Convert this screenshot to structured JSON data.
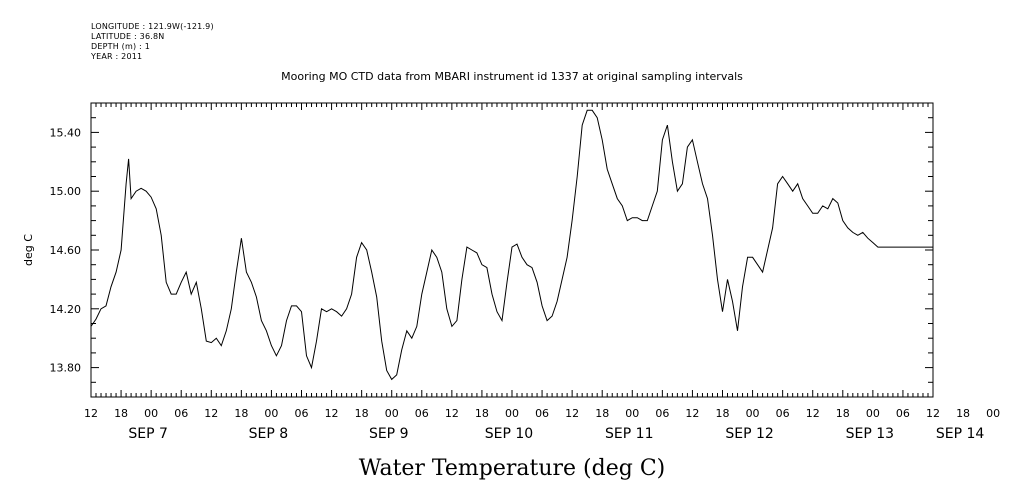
{
  "header_meta": {
    "longitude": "LONGITUDE : 121.9W(-121.9)",
    "latitude": "LATITUDE : 36.8N",
    "depth": "DEPTH (m) : 1",
    "year": "YEAR : 2011"
  },
  "chart_data": {
    "type": "line",
    "title": "Mooring MO CTD data from MBARI instrument id 1337 at original sampling intervals",
    "xlabel": "Water Temperature (deg C)",
    "ylabel": "deg C",
    "ylim": [
      13.6,
      15.6
    ],
    "yticks": [
      13.8,
      14.2,
      14.6,
      15.0,
      15.4
    ],
    "ytick_labels": [
      "13.80",
      "14.20",
      "14.60",
      "15.00",
      "15.40"
    ],
    "xlim_hours": [
      0,
      168
    ],
    "x_unit": "hours since 2011-09-06 12:00",
    "hour_tick_labels": [
      "12",
      "18",
      "00",
      "06",
      "12",
      "18",
      "00",
      "06",
      "12",
      "18",
      "00",
      "06",
      "12",
      "18",
      "00",
      "06",
      "12",
      "18",
      "00",
      "06",
      "12",
      "18",
      "00",
      "06",
      "12",
      "18",
      "00",
      "06",
      "12",
      "18",
      "00",
      "06",
      "12"
    ],
    "date_labels": [
      {
        "label": "SEP  7",
        "hour": 12
      },
      {
        "label": "SEP  8",
        "hour": 36
      },
      {
        "label": "SEP  9",
        "hour": 60
      },
      {
        "label": "SEP 10",
        "hour": 84
      },
      {
        "label": "SEP 11",
        "hour": 108
      },
      {
        "label": "SEP 12",
        "hour": 132
      },
      {
        "label": "SEP 13",
        "hour": 156
      },
      {
        "label": "SEP 14",
        "hour": 174
      }
    ],
    "grid": false,
    "series": [
      {
        "x": [
          0,
          1,
          2,
          3,
          4,
          5,
          6,
          7,
          7.5,
          8,
          9,
          10,
          11,
          12,
          13,
          14,
          15,
          16,
          17,
          18,
          19,
          20,
          21,
          22,
          23,
          24,
          25,
          26,
          27,
          28,
          29,
          30,
          31,
          32,
          33,
          34,
          35,
          36,
          37,
          38,
          39,
          40,
          41,
          42,
          43,
          44,
          45,
          46,
          47,
          48,
          49,
          50,
          51,
          52,
          53,
          54,
          55,
          56,
          57,
          58,
          59,
          60,
          61,
          62,
          63,
          64,
          65,
          66,
          67,
          68,
          69,
          70,
          71,
          72,
          73,
          74,
          75,
          76,
          77,
          78,
          79,
          80,
          81,
          82,
          83,
          84,
          85,
          86,
          87,
          88,
          89,
          90,
          91,
          92,
          93,
          94,
          95,
          96,
          97,
          98,
          99,
          100,
          101,
          102,
          103,
          104,
          105,
          106,
          107,
          108,
          109,
          110,
          111,
          112,
          113,
          114,
          115,
          116,
          117,
          118,
          119,
          120,
          121,
          122,
          123,
          124,
          125,
          126,
          127,
          128,
          129,
          130,
          131,
          132,
          133,
          134,
          135,
          136,
          137,
          138,
          139,
          140,
          141,
          142,
          143,
          144,
          145,
          146,
          147,
          148,
          149,
          150,
          151,
          152,
          153,
          154,
          155,
          156,
          157,
          158,
          159,
          160,
          161,
          162,
          163,
          164,
          165,
          166,
          167,
          168
        ],
        "y": [
          14.08,
          14.13,
          14.2,
          14.22,
          14.35,
          14.45,
          14.6,
          15.05,
          15.22,
          14.95,
          15.0,
          15.02,
          15.0,
          14.96,
          14.88,
          14.7,
          14.38,
          14.3,
          14.3,
          14.38,
          14.45,
          14.3,
          14.38,
          14.2,
          13.98,
          13.97,
          14.0,
          13.95,
          14.05,
          14.2,
          14.45,
          14.68,
          14.45,
          14.38,
          14.28,
          14.12,
          14.05,
          13.95,
          13.88,
          13.95,
          14.12,
          14.22,
          14.22,
          14.18,
          13.88,
          13.8,
          13.98,
          14.2,
          14.18,
          14.2,
          14.18,
          14.15,
          14.2,
          14.3,
          14.55,
          14.65,
          14.6,
          14.45,
          14.28,
          13.98,
          13.78,
          13.72,
          13.75,
          13.92,
          14.05,
          14.0,
          14.08,
          14.3,
          14.45,
          14.6,
          14.55,
          14.45,
          14.2,
          14.08,
          14.12,
          14.4,
          14.62,
          14.6,
          14.58,
          14.5,
          14.48,
          14.3,
          14.18,
          14.12,
          14.38,
          14.62,
          14.64,
          14.55,
          14.5,
          14.48,
          14.38,
          14.22,
          14.12,
          14.15,
          14.25,
          14.4,
          14.55,
          14.8,
          15.1,
          15.45,
          15.55,
          15.55,
          15.5,
          15.35,
          15.15,
          15.05,
          14.95,
          14.9,
          14.8,
          14.82,
          14.82,
          14.8,
          14.8,
          14.9,
          15.0,
          15.35,
          15.45,
          15.2,
          15.0,
          15.05,
          15.3,
          15.35,
          15.2,
          15.05,
          14.95,
          14.7,
          14.4,
          14.18,
          14.4,
          14.25,
          14.05,
          14.35,
          14.55,
          14.55,
          14.5,
          14.45,
          14.6,
          14.75,
          15.05,
          15.1,
          15.05,
          15.0,
          15.05,
          14.95,
          14.9,
          14.85,
          14.85,
          14.9,
          14.88,
          14.95,
          14.92,
          14.8,
          14.75,
          14.72,
          14.7,
          14.72,
          14.68,
          14.65,
          14.62,
          14.62,
          14.62,
          14.62,
          14.62,
          14.62,
          14.62,
          14.62,
          14.62,
          14.62,
          14.62,
          14.62
        ]
      }
    ]
  }
}
